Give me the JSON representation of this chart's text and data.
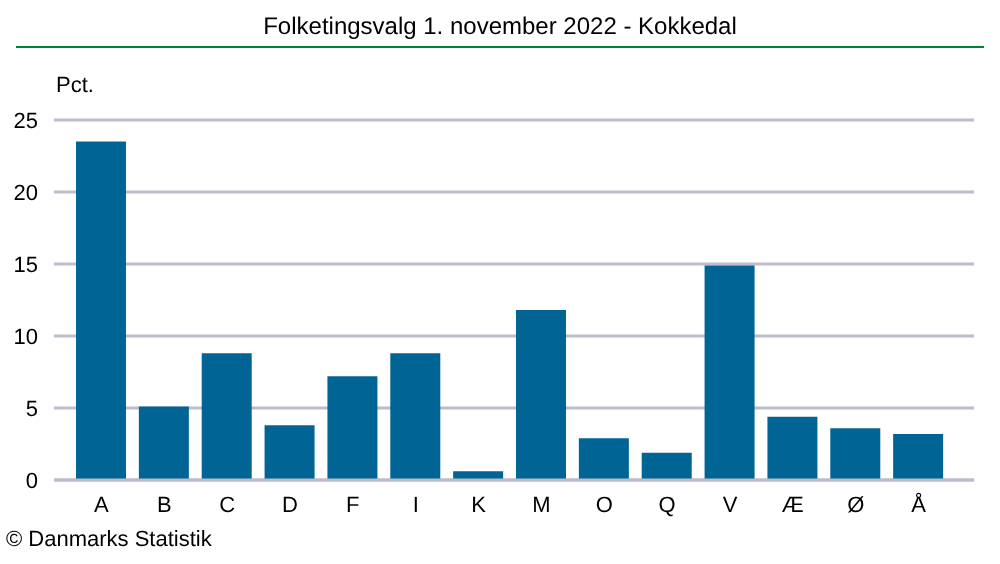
{
  "chart_data": {
    "type": "bar",
    "title": "Folketingsvalg 1. november 2022 - Kokkedal",
    "ylabel": "Pct.",
    "categories": [
      "A",
      "B",
      "C",
      "D",
      "F",
      "I",
      "K",
      "M",
      "O",
      "Q",
      "V",
      "Æ",
      "Ø",
      "Å"
    ],
    "values": [
      23.5,
      5.1,
      8.8,
      3.8,
      7.2,
      8.8,
      0.6,
      11.8,
      2.9,
      1.9,
      14.9,
      4.4,
      3.6,
      3.2
    ],
    "color": "#006495",
    "ylim": [
      0,
      25
    ],
    "yticks": [
      0,
      5,
      10,
      15,
      20,
      25
    ],
    "grid": "y",
    "annotations": [
      "© Danmarks Statistik"
    ]
  }
}
